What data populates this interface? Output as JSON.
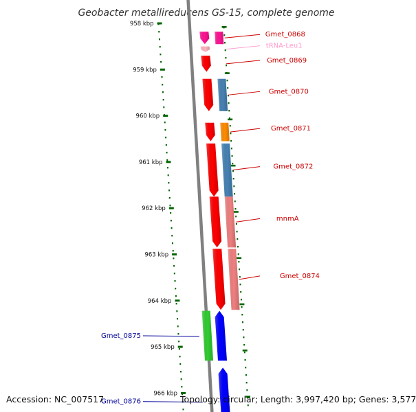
{
  "title": "Geobacter metallireducens GS-15, complete genome",
  "footer": {
    "accession": "Accession: NC_007517",
    "topology": "Topology: circular; Length: 3,997,420 bp; Genes: 3,577"
  },
  "colors": {
    "red": "#ff0000",
    "salmon": "#f08080",
    "blue_grey": "#4682b4",
    "orange": "#ff8c00",
    "magenta": "#ff1493",
    "pink": "#ffb6c1",
    "green": "#32cd32",
    "blue": "#0000ff",
    "label_red": "#cc0000",
    "label_blue": "#000099",
    "label_pink": "#ff99cc",
    "backbone": "#808080",
    "tick": "#006400"
  },
  "scale": {
    "ticks": [
      {
        "kbp": 958,
        "label": "958 kbp"
      },
      {
        "kbp": 959,
        "label": "959 kbp"
      },
      {
        "kbp": 960,
        "label": "960 kbp"
      },
      {
        "kbp": 961,
        "label": "961 kbp"
      },
      {
        "kbp": 962,
        "label": "962 kbp"
      },
      {
        "kbp": 963,
        "label": "963 kbp"
      },
      {
        "kbp": 964,
        "label": "964 kbp"
      },
      {
        "kbp": 965,
        "label": "965 kbp"
      },
      {
        "kbp": 966,
        "label": "966 kbp"
      }
    ]
  },
  "features": [
    {
      "name": "Gmet_0868",
      "strand": "forward",
      "color": "#ff1493",
      "label_color": "#cc0000",
      "start_kbp": 958.18,
      "end_kbp": 958.45,
      "cog_color": "#ff1493"
    },
    {
      "name": "tRNA-Leu1",
      "strand": "forward",
      "color": "#ffb6c1",
      "label_color": "#ff99cc",
      "start_kbp": 958.5,
      "end_kbp": 958.62,
      "cog_color": null
    },
    {
      "name": "Gmet_0869",
      "strand": "forward",
      "color": "#ff0000",
      "label_color": "#cc0000",
      "start_kbp": 958.7,
      "end_kbp": 959.05,
      "cog_color": null
    },
    {
      "name": "Gmet_0870",
      "strand": "forward",
      "color": "#ff0000",
      "label_color": "#cc0000",
      "start_kbp": 959.2,
      "end_kbp": 959.9,
      "cog_color": "#4682b4"
    },
    {
      "name": "Gmet_0871",
      "strand": "forward",
      "color": "#ff0000",
      "label_color": "#cc0000",
      "start_kbp": 960.15,
      "end_kbp": 960.55,
      "cog_color": "#ff8c00"
    },
    {
      "name": "Gmet_0872",
      "strand": "forward",
      "color": "#ff0000",
      "label_color": "#cc0000",
      "start_kbp": 960.6,
      "end_kbp": 961.75,
      "cog_color": "#4682b4"
    },
    {
      "name": "mnmA",
      "strand": "forward",
      "color": "#ff0000",
      "label_color": "#cc0000",
      "start_kbp": 961.75,
      "end_kbp": 962.85,
      "cog_color": "#f08080"
    },
    {
      "name": "Gmet_0874",
      "strand": "forward",
      "color": "#ff0000",
      "label_color": "#cc0000",
      "start_kbp": 962.88,
      "end_kbp": 964.2,
      "cog_color": "#f08080"
    },
    {
      "name": "Gmet_0875",
      "strand": "reverse",
      "color": "#0000ff",
      "label_color": "#000099",
      "start_kbp": 964.22,
      "end_kbp": 965.3,
      "cog_color": "#32cd32"
    },
    {
      "name": "Gmet_0876",
      "strand": "reverse",
      "color": "#0000ff",
      "label_color": "#000099",
      "start_kbp": 965.45,
      "end_kbp": 966.5,
      "cog_color": null
    }
  ]
}
